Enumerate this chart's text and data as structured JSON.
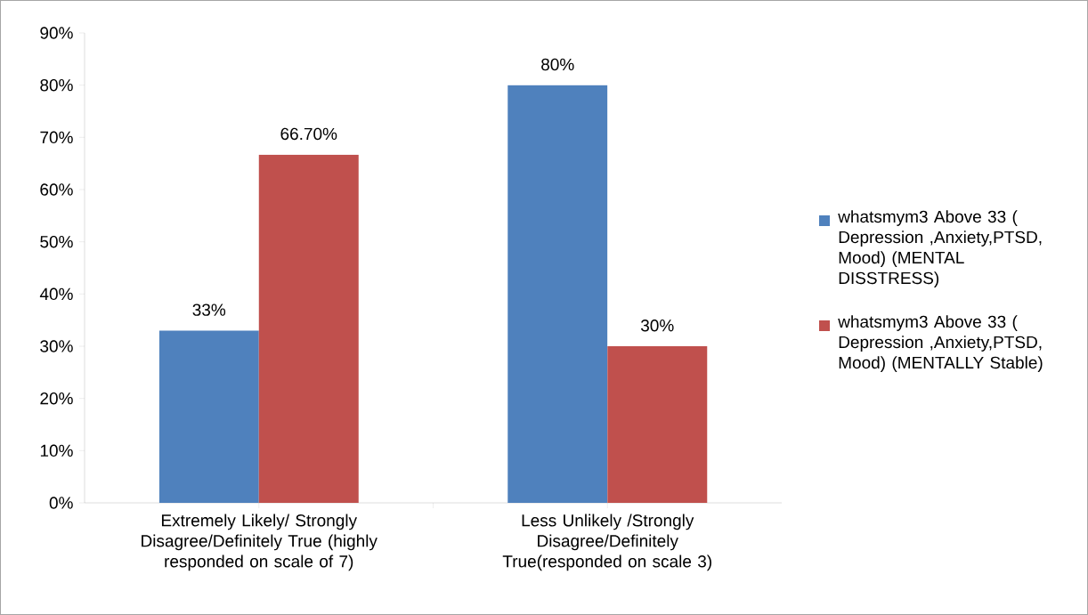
{
  "chart_data": {
    "type": "bar",
    "categories": [
      "Extremely Likely/ Strongly Disagree/Definitely True (highly responded on  scale of 7)",
      "Less Unlikely /Strongly Disagree/Definitely True(responded on scale 3)"
    ],
    "series": [
      {
        "name": "whatsmym3 Above 33  ( Depression ,Anxiety,PTSD, Mood) (MENTAL DISSTRESS)",
        "color": "#4f81bd",
        "values": [
          33,
          80
        ],
        "value_labels": [
          "33%",
          "80%"
        ]
      },
      {
        "name": "whatsmym3 Above 33  ( Depression ,Anxiety,PTSD, Mood) (MENTALLY Stable)",
        "color": "#c0504d",
        "values": [
          66.7,
          30
        ],
        "value_labels": [
          "66.70%",
          "30%"
        ]
      }
    ],
    "ylim": [
      0,
      90
    ],
    "yticks": [
      {
        "value": 0,
        "label": "0%"
      },
      {
        "value": 10,
        "label": "10%"
      },
      {
        "value": 20,
        "label": "20%"
      },
      {
        "value": 30,
        "label": "30%"
      },
      {
        "value": 40,
        "label": "40%"
      },
      {
        "value": 50,
        "label": "50%"
      },
      {
        "value": 60,
        "label": "60%"
      },
      {
        "value": 70,
        "label": "70%"
      },
      {
        "value": 80,
        "label": "80%"
      },
      {
        "value": 90,
        "label": "90%"
      }
    ],
    "grid": false,
    "legend": "right"
  }
}
